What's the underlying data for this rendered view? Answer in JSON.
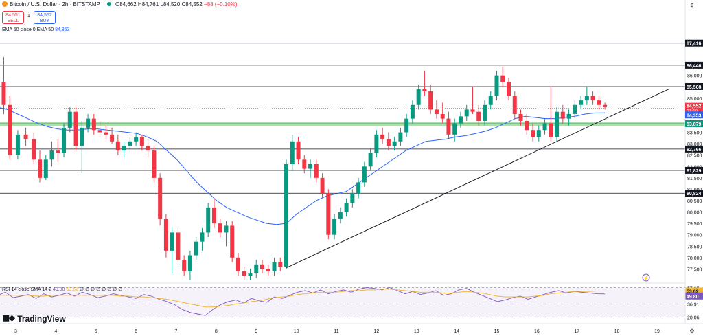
{
  "header": {
    "symbol": "Bitcoin / U.S. Dollar · 2h · BITSTAMP",
    "ohlc": "O84,662 H84,761 L84,520 C84,552",
    "change": "−88 (−0.10%)"
  },
  "trade": {
    "sell_price": "84,551",
    "sell_label": "SELL",
    "spread": "1",
    "buy_price": "84,552",
    "buy_label": "BUY"
  },
  "indicators": {
    "ema_label": "EMA 50 close 0 EMA 50",
    "ema_value": "84,353",
    "rsi_label": "RSI 14 close SMA 14 2",
    "rsi_value": "49.80",
    "rsi_sma_value": "53.62",
    "rsi_na": "∅ ∅ ∅ ∅ ∅ ∅ ∅ ∅"
  },
  "brand": "TradingView",
  "colors": {
    "up": "#089981",
    "down": "#f23645",
    "ema": "#2962ff",
    "rsi": "#7e57c2",
    "rsi_sma": "#f0b429",
    "support_band": "#4caf50"
  },
  "chart_data": {
    "type": "candlestick",
    "ylim": [
      77000,
      87800
    ],
    "y_ticks": [
      "86,000",
      "85,500",
      "85,000",
      "84,500",
      "84,000",
      "83,500",
      "83,000",
      "82,500",
      "82,000",
      "81,500",
      "81,000",
      "80,500",
      "80,000",
      "79,500",
      "79,000",
      "78,500",
      "78,000",
      "77,500"
    ],
    "x_ticks": [
      "3",
      "4",
      "5",
      "6",
      "7",
      "8",
      "9",
      "10",
      "11",
      "12",
      "13",
      "14",
      "15",
      "16",
      "17",
      "18",
      "19"
    ],
    "horizontal_levels": [
      87416,
      86446,
      85508,
      82766,
      81829,
      80824
    ],
    "level_labels": [
      "87,416",
      "86,446",
      "85,508",
      "82,766",
      "81,829",
      "80,824"
    ],
    "support_level": 83879,
    "support_label": "83,879",
    "current_price": 84552,
    "current_price_label": "84,552",
    "countdown": "01:18",
    "ema_last": 84353,
    "ema_last_label": "84,353",
    "ema_series": [
      84600,
      84500,
      84300,
      84100,
      83900,
      83750,
      83650,
      83600,
      83600,
      83650,
      83650,
      83600,
      83550,
      83500,
      83450,
      83300,
      83100,
      82700,
      82300,
      81800,
      81300,
      80900,
      80500,
      80200,
      80000,
      79800,
      79650,
      79500,
      79450,
      79500,
      79900,
      80200,
      80500,
      80700,
      80800,
      80900,
      81200,
      81500,
      81800,
      82100,
      82400,
      82700,
      82900,
      83100,
      83150,
      83200,
      83300,
      83350,
      83450,
      83550,
      83700,
      83900,
      84100,
      84200,
      84150,
      84100,
      84100,
      84150,
      84200,
      84300,
      84350,
      84353
    ],
    "trendline": {
      "start": [
        9.75,
        77550
      ],
      "end": [
        19.3,
        85400
      ]
    },
    "candles": [
      {
        "x": 2.55,
        "o": 86800,
        "h": 87300,
        "l": 85500,
        "c": 85700
      },
      {
        "x": 2.7,
        "o": 85700,
        "h": 86800,
        "l": 84300,
        "c": 84700
      },
      {
        "x": 2.85,
        "o": 84700,
        "h": 85100,
        "l": 82300,
        "c": 82500
      },
      {
        "x": 3.05,
        "o": 82500,
        "h": 83600,
        "l": 82300,
        "c": 83400
      },
      {
        "x": 3.25,
        "o": 83400,
        "h": 83700,
        "l": 82900,
        "c": 83200
      },
      {
        "x": 3.45,
        "o": 83200,
        "h": 83500,
        "l": 82100,
        "c": 82300
      },
      {
        "x": 3.6,
        "o": 82300,
        "h": 82700,
        "l": 81300,
        "c": 81500
      },
      {
        "x": 3.75,
        "o": 81500,
        "h": 82500,
        "l": 81400,
        "c": 82300
      },
      {
        "x": 3.9,
        "o": 82300,
        "h": 83100,
        "l": 82000,
        "c": 82700
      },
      {
        "x": 4.05,
        "o": 82700,
        "h": 83200,
        "l": 82200,
        "c": 82600
      },
      {
        "x": 4.2,
        "o": 82600,
        "h": 83900,
        "l": 82400,
        "c": 83700
      },
      {
        "x": 4.35,
        "o": 83700,
        "h": 84600,
        "l": 83500,
        "c": 84400
      },
      {
        "x": 4.5,
        "o": 84400,
        "h": 84600,
        "l": 82700,
        "c": 82900
      },
      {
        "x": 4.65,
        "o": 82900,
        "h": 84000,
        "l": 81700,
        "c": 83700
      },
      {
        "x": 4.8,
        "o": 83700,
        "h": 84300,
        "l": 83500,
        "c": 84100
      },
      {
        "x": 4.95,
        "o": 84100,
        "h": 84300,
        "l": 83400,
        "c": 83600
      },
      {
        "x": 5.1,
        "o": 83600,
        "h": 84000,
        "l": 83300,
        "c": 83500
      },
      {
        "x": 5.25,
        "o": 83500,
        "h": 83800,
        "l": 83200,
        "c": 83400
      },
      {
        "x": 5.4,
        "o": 83400,
        "h": 83700,
        "l": 83000,
        "c": 83100
      },
      {
        "x": 5.55,
        "o": 83100,
        "h": 83400,
        "l": 82500,
        "c": 82700
      },
      {
        "x": 5.7,
        "o": 82700,
        "h": 83100,
        "l": 82400,
        "c": 82900
      },
      {
        "x": 5.85,
        "o": 82900,
        "h": 83300,
        "l": 82700,
        "c": 83100
      },
      {
        "x": 6.0,
        "o": 83100,
        "h": 83500,
        "l": 82900,
        "c": 83300
      },
      {
        "x": 6.15,
        "o": 83300,
        "h": 83400,
        "l": 82700,
        "c": 82900
      },
      {
        "x": 6.3,
        "o": 82900,
        "h": 83200,
        "l": 82400,
        "c": 82700
      },
      {
        "x": 6.45,
        "o": 82700,
        "h": 82900,
        "l": 81300,
        "c": 81500
      },
      {
        "x": 6.6,
        "o": 81500,
        "h": 81700,
        "l": 79400,
        "c": 79700
      },
      {
        "x": 6.75,
        "o": 79700,
        "h": 79900,
        "l": 78000,
        "c": 78300
      },
      {
        "x": 6.9,
        "o": 78300,
        "h": 79300,
        "l": 77300,
        "c": 79100
      },
      {
        "x": 7.05,
        "o": 79100,
        "h": 79300,
        "l": 77700,
        "c": 77900
      },
      {
        "x": 7.2,
        "o": 77900,
        "h": 78100,
        "l": 77200,
        "c": 77400
      },
      {
        "x": 7.35,
        "o": 77400,
        "h": 78300,
        "l": 77000,
        "c": 78100
      },
      {
        "x": 7.5,
        "o": 78100,
        "h": 78900,
        "l": 77900,
        "c": 78700
      },
      {
        "x": 7.65,
        "o": 78700,
        "h": 79300,
        "l": 78300,
        "c": 79100
      },
      {
        "x": 7.8,
        "o": 79100,
        "h": 80400,
        "l": 78900,
        "c": 80200
      },
      {
        "x": 7.95,
        "o": 80200,
        "h": 80600,
        "l": 79300,
        "c": 79500
      },
      {
        "x": 8.1,
        "o": 79500,
        "h": 79700,
        "l": 78900,
        "c": 79100
      },
      {
        "x": 8.25,
        "o": 79100,
        "h": 79600,
        "l": 78500,
        "c": 79400
      },
      {
        "x": 8.4,
        "o": 79400,
        "h": 79600,
        "l": 77800,
        "c": 78000
      },
      {
        "x": 8.55,
        "o": 78000,
        "h": 78200,
        "l": 77200,
        "c": 77400
      },
      {
        "x": 8.7,
        "o": 77400,
        "h": 77600,
        "l": 77000,
        "c": 77200
      },
      {
        "x": 8.85,
        "o": 77200,
        "h": 77500,
        "l": 77000,
        "c": 77300
      },
      {
        "x": 9.0,
        "o": 77300,
        "h": 77900,
        "l": 77100,
        "c": 77700
      },
      {
        "x": 9.15,
        "o": 77700,
        "h": 77900,
        "l": 77300,
        "c": 77500
      },
      {
        "x": 9.3,
        "o": 77500,
        "h": 77700,
        "l": 77200,
        "c": 77400
      },
      {
        "x": 9.45,
        "o": 77400,
        "h": 78000,
        "l": 77200,
        "c": 77800
      },
      {
        "x": 9.6,
        "o": 77800,
        "h": 78000,
        "l": 77400,
        "c": 77600
      },
      {
        "x": 9.75,
        "o": 77600,
        "h": 82300,
        "l": 77500,
        "c": 82100
      },
      {
        "x": 9.9,
        "o": 82100,
        "h": 83400,
        "l": 81800,
        "c": 83100
      },
      {
        "x": 10.05,
        "o": 83100,
        "h": 83300,
        "l": 82100,
        "c": 82300
      },
      {
        "x": 10.2,
        "o": 82300,
        "h": 82500,
        "l": 81700,
        "c": 81900
      },
      {
        "x": 10.35,
        "o": 81900,
        "h": 82300,
        "l": 81500,
        "c": 82100
      },
      {
        "x": 10.5,
        "o": 82100,
        "h": 82300,
        "l": 81300,
        "c": 81500
      },
      {
        "x": 10.65,
        "o": 81500,
        "h": 81700,
        "l": 80600,
        "c": 80800
      },
      {
        "x": 10.8,
        "o": 80800,
        "h": 81000,
        "l": 78800,
        "c": 79000
      },
      {
        "x": 10.95,
        "o": 79000,
        "h": 79900,
        "l": 78800,
        "c": 79700
      },
      {
        "x": 11.1,
        "o": 79700,
        "h": 80200,
        "l": 79500,
        "c": 80000
      },
      {
        "x": 11.25,
        "o": 80000,
        "h": 80600,
        "l": 79800,
        "c": 80400
      },
      {
        "x": 11.4,
        "o": 80400,
        "h": 81000,
        "l": 80200,
        "c": 80800
      },
      {
        "x": 11.55,
        "o": 80800,
        "h": 81500,
        "l": 80600,
        "c": 81300
      },
      {
        "x": 11.7,
        "o": 81300,
        "h": 82200,
        "l": 81100,
        "c": 82000
      },
      {
        "x": 11.85,
        "o": 82000,
        "h": 82800,
        "l": 81800,
        "c": 82600
      },
      {
        "x": 12.0,
        "o": 82600,
        "h": 83600,
        "l": 82400,
        "c": 83400
      },
      {
        "x": 12.15,
        "o": 83400,
        "h": 83700,
        "l": 83000,
        "c": 83200
      },
      {
        "x": 12.3,
        "o": 83200,
        "h": 83500,
        "l": 82700,
        "c": 82900
      },
      {
        "x": 12.45,
        "o": 82900,
        "h": 83300,
        "l": 82700,
        "c": 83100
      },
      {
        "x": 12.6,
        "o": 83100,
        "h": 83700,
        "l": 82900,
        "c": 83500
      },
      {
        "x": 12.75,
        "o": 83500,
        "h": 84300,
        "l": 83300,
        "c": 84100
      },
      {
        "x": 12.9,
        "o": 84100,
        "h": 84900,
        "l": 83900,
        "c": 84700
      },
      {
        "x": 13.05,
        "o": 84700,
        "h": 85600,
        "l": 84500,
        "c": 85400
      },
      {
        "x": 13.2,
        "o": 85400,
        "h": 86200,
        "l": 85100,
        "c": 85300
      },
      {
        "x": 13.35,
        "o": 85300,
        "h": 85600,
        "l": 84300,
        "c": 84500
      },
      {
        "x": 13.5,
        "o": 84500,
        "h": 84900,
        "l": 84100,
        "c": 84300
      },
      {
        "x": 13.65,
        "o": 84300,
        "h": 84800,
        "l": 83900,
        "c": 84100
      },
      {
        "x": 13.8,
        "o": 84100,
        "h": 84400,
        "l": 83200,
        "c": 83400
      },
      {
        "x": 13.95,
        "o": 83400,
        "h": 84100,
        "l": 83100,
        "c": 83900
      },
      {
        "x": 14.1,
        "o": 83900,
        "h": 84400,
        "l": 83700,
        "c": 84200
      },
      {
        "x": 14.25,
        "o": 84200,
        "h": 84700,
        "l": 84000,
        "c": 84500
      },
      {
        "x": 14.4,
        "o": 84500,
        "h": 85500,
        "l": 84300,
        "c": 84400
      },
      {
        "x": 14.55,
        "o": 84400,
        "h": 84700,
        "l": 83800,
        "c": 84000
      },
      {
        "x": 14.7,
        "o": 84000,
        "h": 84900,
        "l": 83800,
        "c": 84700
      },
      {
        "x": 14.85,
        "o": 84700,
        "h": 85300,
        "l": 84500,
        "c": 85100
      },
      {
        "x": 15.0,
        "o": 85100,
        "h": 86200,
        "l": 84900,
        "c": 86000
      },
      {
        "x": 15.15,
        "o": 86000,
        "h": 86400,
        "l": 85500,
        "c": 85700
      },
      {
        "x": 15.3,
        "o": 85700,
        "h": 85900,
        "l": 84900,
        "c": 85100
      },
      {
        "x": 15.45,
        "o": 85100,
        "h": 85300,
        "l": 84100,
        "c": 84300
      },
      {
        "x": 15.6,
        "o": 84300,
        "h": 84500,
        "l": 83800,
        "c": 84000
      },
      {
        "x": 15.75,
        "o": 84000,
        "h": 84300,
        "l": 83400,
        "c": 83600
      },
      {
        "x": 15.9,
        "o": 83600,
        "h": 83900,
        "l": 83100,
        "c": 83300
      },
      {
        "x": 16.05,
        "o": 83300,
        "h": 83800,
        "l": 83100,
        "c": 83600
      },
      {
        "x": 16.2,
        "o": 83600,
        "h": 84100,
        "l": 83400,
        "c": 83900
      },
      {
        "x": 16.35,
        "o": 83900,
        "h": 85500,
        "l": 83100,
        "c": 83300
      },
      {
        "x": 16.5,
        "o": 83300,
        "h": 84600,
        "l": 83100,
        "c": 84400
      },
      {
        "x": 16.65,
        "o": 84400,
        "h": 84700,
        "l": 83900,
        "c": 84100
      },
      {
        "x": 16.8,
        "o": 84100,
        "h": 84500,
        "l": 83800,
        "c": 84300
      },
      {
        "x": 16.95,
        "o": 84300,
        "h": 84900,
        "l": 84100,
        "c": 84700
      },
      {
        "x": 17.1,
        "o": 84700,
        "h": 85100,
        "l": 84500,
        "c": 84900
      },
      {
        "x": 17.25,
        "o": 84900,
        "h": 85500,
        "l": 84700,
        "c": 85100
      },
      {
        "x": 17.4,
        "o": 85100,
        "h": 85300,
        "l": 84700,
        "c": 84900
      },
      {
        "x": 17.55,
        "o": 84900,
        "h": 85100,
        "l": 84500,
        "c": 84700
      },
      {
        "x": 17.7,
        "o": 84700,
        "h": 84800,
        "l": 84500,
        "c": 84600
      }
    ],
    "rsi": {
      "ylim": [
        16,
        62
      ],
      "levels": [
        57.95,
        36.91,
        20.06
      ],
      "level_labels": [
        "57.95",
        "36.91",
        "20.06"
      ],
      "rsi_last_label": "49.80",
      "sma_last_label": "53.62",
      "rsi_values": [
        48,
        52,
        45,
        47,
        49,
        44,
        50,
        46,
        48,
        51,
        47,
        52,
        49,
        45,
        47,
        50,
        48,
        46,
        44,
        49,
        47,
        43,
        40,
        36,
        30,
        26,
        24,
        22,
        30,
        36,
        40,
        42,
        38,
        44,
        41,
        39,
        46,
        44,
        48,
        52,
        54,
        51,
        55,
        50,
        53,
        55,
        52,
        56,
        58,
        57,
        55,
        58,
        54,
        50,
        53,
        49,
        51,
        54,
        48,
        50,
        55,
        57,
        52,
        48,
        44,
        40,
        42,
        45,
        47,
        43,
        46,
        49,
        52,
        54,
        51,
        53,
        52,
        51,
        50,
        49.8
      ],
      "sma_values": [
        48,
        48,
        48,
        48,
        48,
        47,
        47,
        48,
        48,
        48,
        48,
        48,
        48,
        48,
        48,
        48,
        47,
        47,
        46,
        46,
        45,
        44,
        43,
        41,
        39,
        37,
        35,
        33,
        33,
        34,
        35,
        37,
        38,
        40,
        41,
        43,
        45,
        46,
        47,
        49,
        50,
        51,
        52,
        52,
        52,
        53,
        54,
        54,
        55,
        55,
        56,
        56,
        55,
        54,
        53,
        52,
        52,
        52,
        51,
        51,
        52,
        53,
        52,
        51,
        49,
        47,
        46,
        46,
        46,
        46,
        47,
        48,
        50,
        51,
        52,
        53,
        53,
        53,
        53.6,
        53.62
      ]
    }
  }
}
